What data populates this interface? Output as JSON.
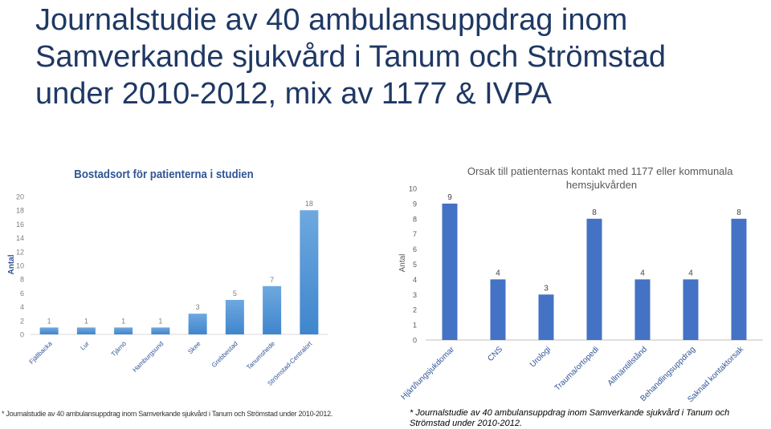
{
  "slide": {
    "title": "Journalstudie av 40 ambulansuppdrag inom\nSamverkande sjukvård i Tanum och Strömstad\nunder 2010-2012, mix av 1177 & IVPA",
    "footnote_left": "* Journalstudie av 40 ambulansuppdrag inom Samverkande sjukvård i Tanum och Strömstad under 2010-2012.",
    "footnote_right": "* Journalstudie av 40 ambulansuppdrag inom Samverkande sjukvård i Tanum och Strömstad under 2010-2012."
  },
  "chart_data": [
    {
      "type": "bar",
      "title": "Bostadsort för patienterna i studien",
      "ylabel": "Antal",
      "xlabel": "",
      "categories": [
        "Fjällbacka",
        "Lur",
        "Tjärnö",
        "Hamburgsund",
        "Skee",
        "Grebbestad",
        "Tanumshede",
        "Strömstad-Centralort"
      ],
      "values": [
        1,
        1,
        1,
        1,
        3,
        5,
        7,
        18
      ],
      "ylim": [
        0,
        20
      ],
      "yticks": [
        0,
        2,
        4,
        6,
        8,
        10,
        12,
        14,
        16,
        18,
        20
      ],
      "grid": false,
      "color": "#5b9bd5"
    },
    {
      "type": "bar",
      "title": "Orsak till patienternas kontakt med 1177 eller kommunala hemsjukvården",
      "ylabel": "Antal",
      "xlabel": "",
      "categories": [
        "Hjärt/lungsjukdomar",
        "CNS",
        "Urologi",
        "Trauma/ortopedi",
        "Allmäntillstånd",
        "Behandlingsuppdrag",
        "Saknad kontaktorsak"
      ],
      "values": [
        9,
        4,
        3,
        8,
        4,
        4,
        8
      ],
      "ylim": [
        0,
        10
      ],
      "yticks": [
        0,
        1,
        2,
        3,
        4,
        5,
        6,
        7,
        8,
        9,
        10
      ],
      "grid": false,
      "color": "#4472c4"
    }
  ]
}
